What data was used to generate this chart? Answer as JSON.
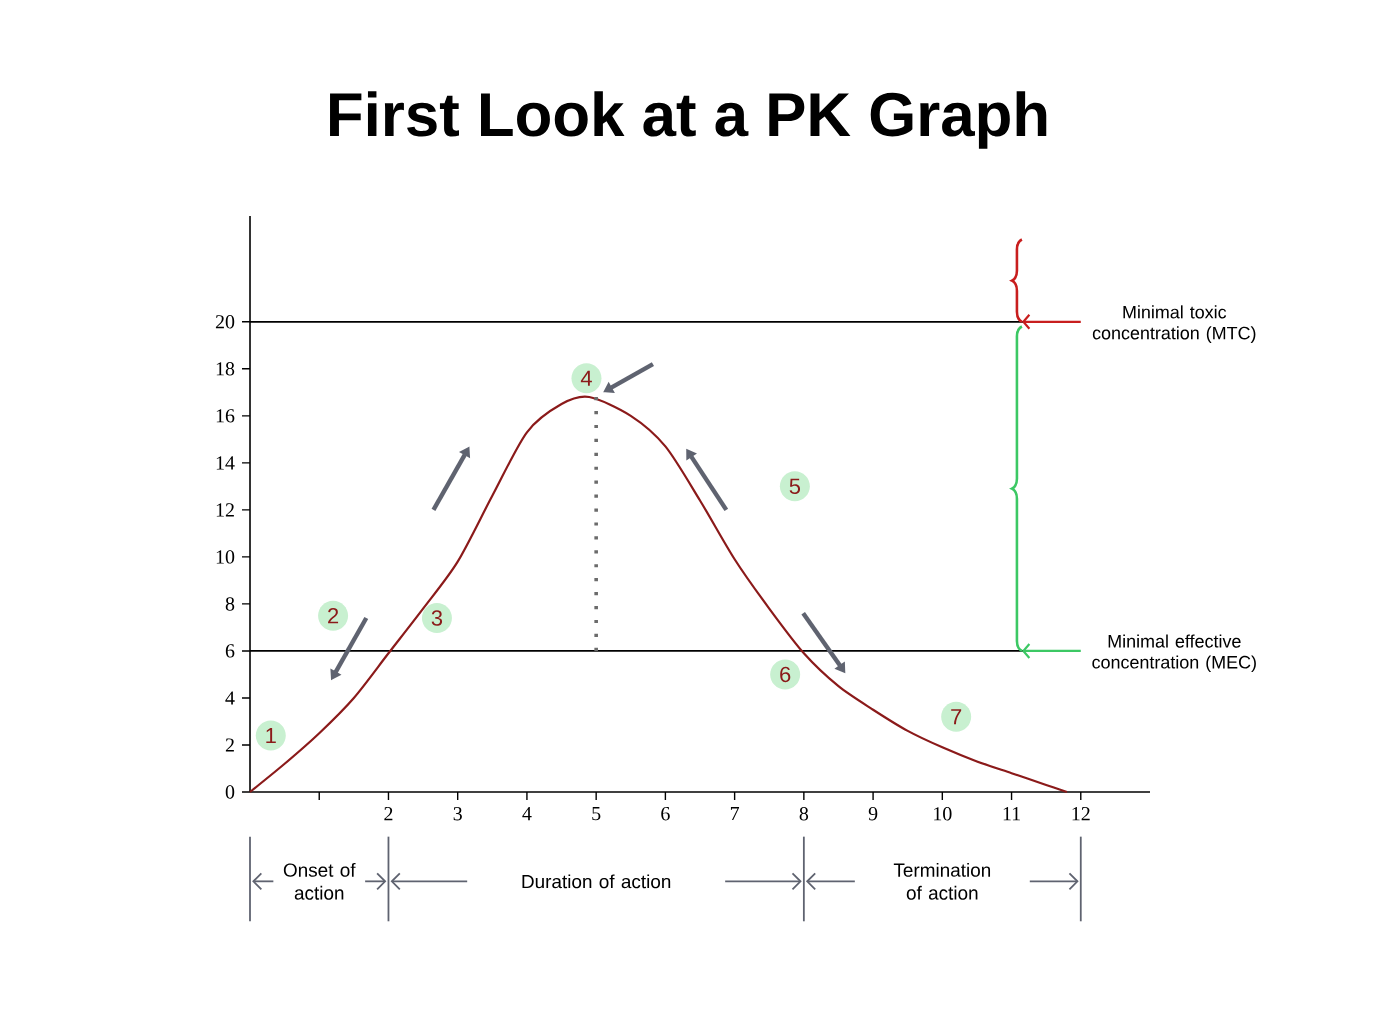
{
  "chart_data": {
    "type": "line",
    "title": "First Look at a PK Graph",
    "xlim": [
      0,
      13
    ],
    "ylim": [
      0,
      24.5
    ],
    "xticks": [
      {
        "value": 1,
        "label": null
      },
      2,
      3,
      4,
      5,
      6,
      7,
      8,
      9,
      10,
      11,
      12
    ],
    "yticks": [
      0,
      2,
      4,
      6,
      8,
      10,
      12,
      14,
      16,
      18,
      20
    ],
    "series": [
      {
        "color": "#8b1a1a",
        "x": [
          0,
          0.5,
          1,
          1.5,
          2,
          2.5,
          3,
          3.5,
          4,
          4.5,
          4.9,
          5.5,
          6,
          6.5,
          7,
          7.5,
          8,
          8.5,
          9,
          9.5,
          10,
          10.5,
          11,
          11.5,
          11.8
        ],
        "values": [
          0,
          1.2,
          2.5,
          4.0,
          5.9,
          7.8,
          9.8,
          12.6,
          15.3,
          16.5,
          16.8,
          16.0,
          14.7,
          12.4,
          9.9,
          7.8,
          5.9,
          4.5,
          3.5,
          2.6,
          1.9,
          1.3,
          0.8,
          0.3,
          0
        ]
      },
      {
        "color": "#6b6b6b",
        "line_style": "dotted",
        "x": [
          5,
          5
        ],
        "values": [
          6,
          16.8
        ]
      }
    ],
    "ref_lines": [
      {
        "axis": "y",
        "value": 20,
        "label": "Minimal toxic concentration (MTC)",
        "color": "#000000"
      },
      {
        "axis": "y",
        "value": 6,
        "label": "Minimal effective concentration (MEC)",
        "color": "#000000"
      }
    ],
    "annotations": [
      "Onset of action",
      "Duration of action",
      "Termination of action",
      {
        "text": "1",
        "x": 0.3,
        "y": 2.4
      },
      {
        "text": "2",
        "x": 1.2,
        "y": 7.5
      },
      {
        "text": "3",
        "x": 2.7,
        "y": 7.4
      },
      {
        "text": "4",
        "x": 4.86,
        "y": 17.6
      },
      {
        "text": "5",
        "x": 7.87,
        "y": 13.0
      },
      {
        "text": "6",
        "x": 7.73,
        "y": 5.0
      },
      {
        "text": "7",
        "x": 10.2,
        "y": 3.2
      }
    ]
  }
}
